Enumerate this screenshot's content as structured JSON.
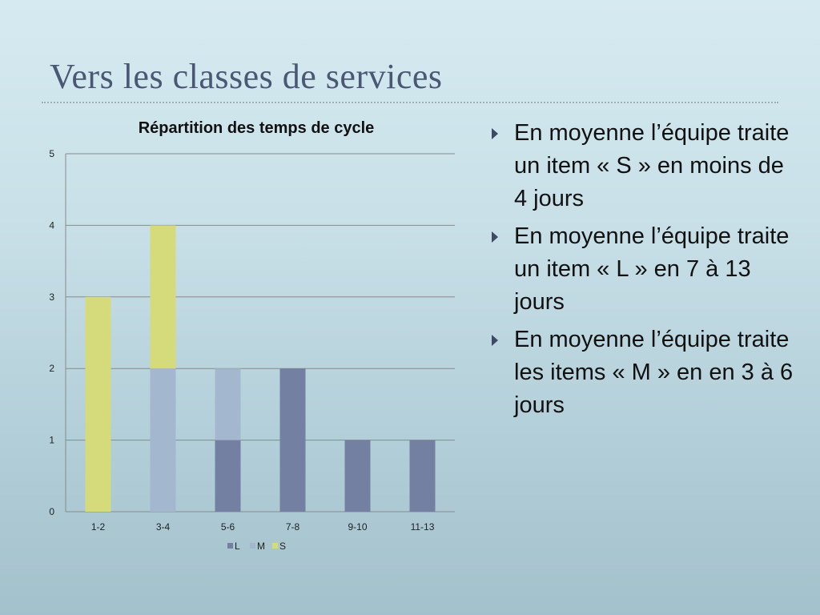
{
  "slide": {
    "title": "Vers les classes de services"
  },
  "bullets": [
    {
      "text": "En moyenne l’équipe traite un item « S » en moins de 4 jours"
    },
    {
      "text": "En moyenne l’équipe traite un item « L » en 7 à 13 jours"
    },
    {
      "text": "En moyenne l’équipe traite les items « M » en en 3 à 6 jours"
    }
  ],
  "colors": {
    "L": "#7480a1",
    "M": "#a3b8cf",
    "S": "#d5da7a",
    "title": "#4a5876",
    "bullet_marker": "#3e4a63"
  },
  "chart_data": {
    "type": "bar",
    "stacked": true,
    "title": "Répartition des temps de cycle",
    "xlabel": "",
    "ylabel": "",
    "categories": [
      "1-2",
      "3-4",
      "5-6",
      "7-8",
      "9-10",
      "11-13"
    ],
    "series": [
      {
        "name": "L",
        "values": [
          0,
          0,
          1,
          2,
          1,
          1
        ]
      },
      {
        "name": "M",
        "values": [
          0,
          2,
          1,
          0,
          0,
          0
        ]
      },
      {
        "name": "S",
        "values": [
          3,
          2,
          0,
          0,
          0,
          0
        ]
      }
    ],
    "ylim": [
      0,
      5
    ],
    "yticks": [
      0,
      1,
      2,
      3,
      4,
      5
    ],
    "grid": true,
    "legend_position": "bottom"
  }
}
